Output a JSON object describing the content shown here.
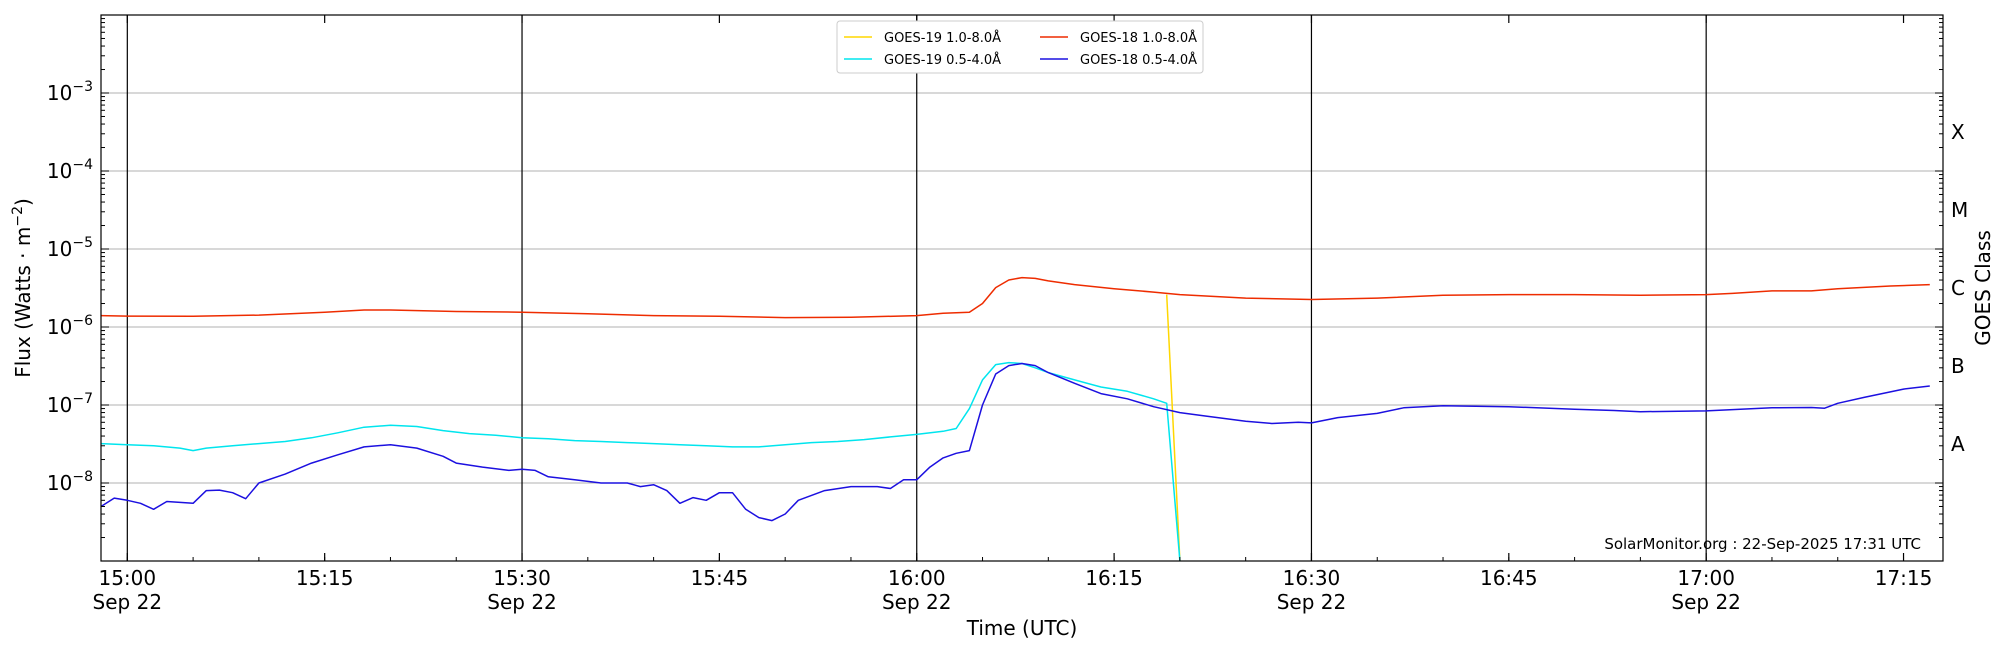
{
  "chart_data": {
    "type": "line",
    "title": "",
    "xlabel": "Time (UTC)",
    "ylabel": "Flux (Watts · m^-2)",
    "y2label": "GOES Class",
    "yscale": "log",
    "ylim": [
      1e-09,
      0.01
    ],
    "xlim": [
      "2025-09-22 14:58",
      "2025-09-22 17:18"
    ],
    "grid": "horizontal",
    "legend_position": "top-center",
    "x_ticks": [
      {
        "time": "15:00",
        "date": "Sep 22"
      },
      {
        "time": "15:15",
        "date": ""
      },
      {
        "time": "15:30",
        "date": "Sep 22"
      },
      {
        "time": "15:45",
        "date": ""
      },
      {
        "time": "16:00",
        "date": "Sep 22"
      },
      {
        "time": "16:15",
        "date": ""
      },
      {
        "time": "16:30",
        "date": "Sep 22"
      },
      {
        "time": "16:45",
        "date": ""
      },
      {
        "time": "17:00",
        "date": "Sep 22"
      },
      {
        "time": "17:15",
        "date": ""
      }
    ],
    "y_ticks": [
      {
        "mantissa": "10",
        "exponent": "−8",
        "value": 1e-08
      },
      {
        "mantissa": "10",
        "exponent": "−7",
        "value": 1e-07
      },
      {
        "mantissa": "10",
        "exponent": "−6",
        "value": 1e-06
      },
      {
        "mantissa": "10",
        "exponent": "−5",
        "value": 1e-05
      },
      {
        "mantissa": "10",
        "exponent": "−4",
        "value": 0.0001
      },
      {
        "mantissa": "10",
        "exponent": "−3",
        "value": 0.001
      }
    ],
    "goes_classes": [
      "A",
      "B",
      "C",
      "M",
      "X"
    ],
    "vertical_lines": [
      "15:00",
      "15:30",
      "16:00",
      "16:30",
      "17:00"
    ],
    "series": [
      {
        "name": "GOES-19 1.0-8.0Å",
        "color": "#ffd700",
        "points": [
          [
            "16:19",
            2.6e-06
          ],
          [
            "16:20",
            1e-09
          ]
        ]
      },
      {
        "name": "GOES-19 0.5-4.0Å",
        "color": "#00e5ee",
        "points": [
          [
            "14:58",
            3.2e-08
          ],
          [
            "15:00",
            3.1e-08
          ],
          [
            "15:02",
            3e-08
          ],
          [
            "15:04",
            2.8e-08
          ],
          [
            "15:05",
            2.6e-08
          ],
          [
            "15:06",
            2.8e-08
          ],
          [
            "15:08",
            3e-08
          ],
          [
            "15:10",
            3.2e-08
          ],
          [
            "15:12",
            3.4e-08
          ],
          [
            "15:14",
            3.8e-08
          ],
          [
            "15:16",
            4.4e-08
          ],
          [
            "15:18",
            5.2e-08
          ],
          [
            "15:20",
            5.5e-08
          ],
          [
            "15:22",
            5.3e-08
          ],
          [
            "15:24",
            4.7e-08
          ],
          [
            "15:26",
            4.3e-08
          ],
          [
            "15:28",
            4.1e-08
          ],
          [
            "15:30",
            3.8e-08
          ],
          [
            "15:32",
            3.7e-08
          ],
          [
            "15:34",
            3.5e-08
          ],
          [
            "15:36",
            3.4e-08
          ],
          [
            "15:38",
            3.3e-08
          ],
          [
            "15:40",
            3.2e-08
          ],
          [
            "15:42",
            3.1e-08
          ],
          [
            "15:44",
            3e-08
          ],
          [
            "15:46",
            2.9e-08
          ],
          [
            "15:48",
            2.9e-08
          ],
          [
            "15:50",
            3.1e-08
          ],
          [
            "15:52",
            3.3e-08
          ],
          [
            "15:54",
            3.4e-08
          ],
          [
            "15:56",
            3.6e-08
          ],
          [
            "15:58",
            3.9e-08
          ],
          [
            "16:00",
            4.2e-08
          ],
          [
            "16:02",
            4.6e-08
          ],
          [
            "16:03",
            5e-08
          ],
          [
            "16:04",
            9e-08
          ],
          [
            "16:05",
            2.1e-07
          ],
          [
            "16:06",
            3.3e-07
          ],
          [
            "16:07",
            3.5e-07
          ],
          [
            "16:08",
            3.4e-07
          ],
          [
            "16:09",
            3e-07
          ],
          [
            "16:10",
            2.6e-07
          ],
          [
            "16:12",
            2.1e-07
          ],
          [
            "16:14",
            1.7e-07
          ],
          [
            "16:16",
            1.5e-07
          ],
          [
            "16:18",
            1.2e-07
          ],
          [
            "16:19",
            1.05e-07
          ],
          [
            "16:20",
            1e-09
          ]
        ]
      },
      {
        "name": "GOES-18 1.0-8.0Å",
        "color": "#ee2c00",
        "points": [
          [
            "14:58",
            1.4e-06
          ],
          [
            "15:00",
            1.38e-06
          ],
          [
            "15:05",
            1.37e-06
          ],
          [
            "15:10",
            1.42e-06
          ],
          [
            "15:15",
            1.55e-06
          ],
          [
            "15:18",
            1.65e-06
          ],
          [
            "15:20",
            1.65e-06
          ],
          [
            "15:25",
            1.58e-06
          ],
          [
            "15:30",
            1.55e-06
          ],
          [
            "15:35",
            1.48e-06
          ],
          [
            "15:40",
            1.4e-06
          ],
          [
            "15:45",
            1.37e-06
          ],
          [
            "15:50",
            1.32e-06
          ],
          [
            "15:55",
            1.33e-06
          ],
          [
            "16:00",
            1.4e-06
          ],
          [
            "16:02",
            1.5e-06
          ],
          [
            "16:04",
            1.55e-06
          ],
          [
            "16:05",
            2e-06
          ],
          [
            "16:06",
            3.2e-06
          ],
          [
            "16:07",
            4e-06
          ],
          [
            "16:08",
            4.3e-06
          ],
          [
            "16:09",
            4.2e-06
          ],
          [
            "16:10",
            3.9e-06
          ],
          [
            "16:12",
            3.5e-06
          ],
          [
            "16:15",
            3.1e-06
          ],
          [
            "16:18",
            2.8e-06
          ],
          [
            "16:20",
            2.6e-06
          ],
          [
            "16:25",
            2.35e-06
          ],
          [
            "16:30",
            2.25e-06
          ],
          [
            "16:35",
            2.35e-06
          ],
          [
            "16:40",
            2.55e-06
          ],
          [
            "16:45",
            2.6e-06
          ],
          [
            "16:50",
            2.6e-06
          ],
          [
            "16:55",
            2.55e-06
          ],
          [
            "17:00",
            2.6e-06
          ],
          [
            "17:02",
            2.7e-06
          ],
          [
            "17:05",
            2.9e-06
          ],
          [
            "17:08",
            2.9e-06
          ],
          [
            "17:10",
            3.1e-06
          ],
          [
            "17:14",
            3.35e-06
          ],
          [
            "17:17",
            3.5e-06
          ]
        ]
      },
      {
        "name": "GOES-18 0.5-4.0Å",
        "color": "#1c10e0",
        "points": [
          [
            "14:58",
            5e-09
          ],
          [
            "14:59",
            6.4e-09
          ],
          [
            "15:00",
            6e-09
          ],
          [
            "15:01",
            5.5e-09
          ],
          [
            "15:02",
            4.6e-09
          ],
          [
            "15:03",
            5.8e-09
          ],
          [
            "15:05",
            5.5e-09
          ],
          [
            "15:06",
            8e-09
          ],
          [
            "15:07",
            8.1e-09
          ],
          [
            "15:08",
            7.5e-09
          ],
          [
            "15:09",
            6.3e-09
          ],
          [
            "15:10",
            1e-08
          ],
          [
            "15:12",
            1.3e-08
          ],
          [
            "15:14",
            1.8e-08
          ],
          [
            "15:16",
            2.3e-08
          ],
          [
            "15:18",
            2.9e-08
          ],
          [
            "15:20",
            3.1e-08
          ],
          [
            "15:22",
            2.8e-08
          ],
          [
            "15:24",
            2.2e-08
          ],
          [
            "15:25",
            1.8e-08
          ],
          [
            "15:27",
            1.6e-08
          ],
          [
            "15:29",
            1.45e-08
          ],
          [
            "15:30",
            1.5e-08
          ],
          [
            "15:31",
            1.45e-08
          ],
          [
            "15:32",
            1.2e-08
          ],
          [
            "15:34",
            1.1e-08
          ],
          [
            "15:36",
            1e-08
          ],
          [
            "15:38",
            1e-08
          ],
          [
            "15:39",
            9e-09
          ],
          [
            "15:40",
            9.5e-09
          ],
          [
            "15:41",
            8e-09
          ],
          [
            "15:42",
            5.5e-09
          ],
          [
            "15:43",
            6.5e-09
          ],
          [
            "15:44",
            6e-09
          ],
          [
            "15:45",
            7.5e-09
          ],
          [
            "15:46",
            7.5e-09
          ],
          [
            "15:47",
            4.6e-09
          ],
          [
            "15:48",
            3.6e-09
          ],
          [
            "15:49",
            3.3e-09
          ],
          [
            "15:50",
            4e-09
          ],
          [
            "15:51",
            6e-09
          ],
          [
            "15:53",
            8e-09
          ],
          [
            "15:55",
            9e-09
          ],
          [
            "15:57",
            9e-09
          ],
          [
            "15:58",
            8.5e-09
          ],
          [
            "15:59",
            1.1e-08
          ],
          [
            "16:00",
            1.1e-08
          ],
          [
            "16:01",
            1.6e-08
          ],
          [
            "16:02",
            2.1e-08
          ],
          [
            "16:03",
            2.4e-08
          ],
          [
            "16:04",
            2.6e-08
          ],
          [
            "16:05",
            1e-07
          ],
          [
            "16:06",
            2.5e-07
          ],
          [
            "16:07",
            3.2e-07
          ],
          [
            "16:08",
            3.4e-07
          ],
          [
            "16:09",
            3.2e-07
          ],
          [
            "16:10",
            2.6e-07
          ],
          [
            "16:12",
            1.9e-07
          ],
          [
            "16:14",
            1.4e-07
          ],
          [
            "16:16",
            1.2e-07
          ],
          [
            "16:18",
            9.5e-08
          ],
          [
            "16:20",
            8e-08
          ],
          [
            "16:22",
            7.2e-08
          ],
          [
            "16:25",
            6.2e-08
          ],
          [
            "16:27",
            5.8e-08
          ],
          [
            "16:29",
            6e-08
          ],
          [
            "16:30",
            5.9e-08
          ],
          [
            "16:32",
            6.9e-08
          ],
          [
            "16:35",
            7.8e-08
          ],
          [
            "16:37",
            9.2e-08
          ],
          [
            "16:40",
            9.8e-08
          ],
          [
            "16:45",
            9.5e-08
          ],
          [
            "16:50",
            8.8e-08
          ],
          [
            "16:53",
            8.5e-08
          ],
          [
            "16:55",
            8.2e-08
          ],
          [
            "17:00",
            8.4e-08
          ],
          [
            "17:05",
            9.2e-08
          ],
          [
            "17:08",
            9.3e-08
          ],
          [
            "17:09",
            9.1e-08
          ],
          [
            "17:10",
            1.05e-07
          ],
          [
            "17:12",
            1.25e-07
          ],
          [
            "17:15",
            1.6e-07
          ],
          [
            "17:17",
            1.75e-07
          ]
        ]
      }
    ],
    "annotation": "SolarMonitor.org : 22-Sep-2025 17:31 UTC"
  }
}
